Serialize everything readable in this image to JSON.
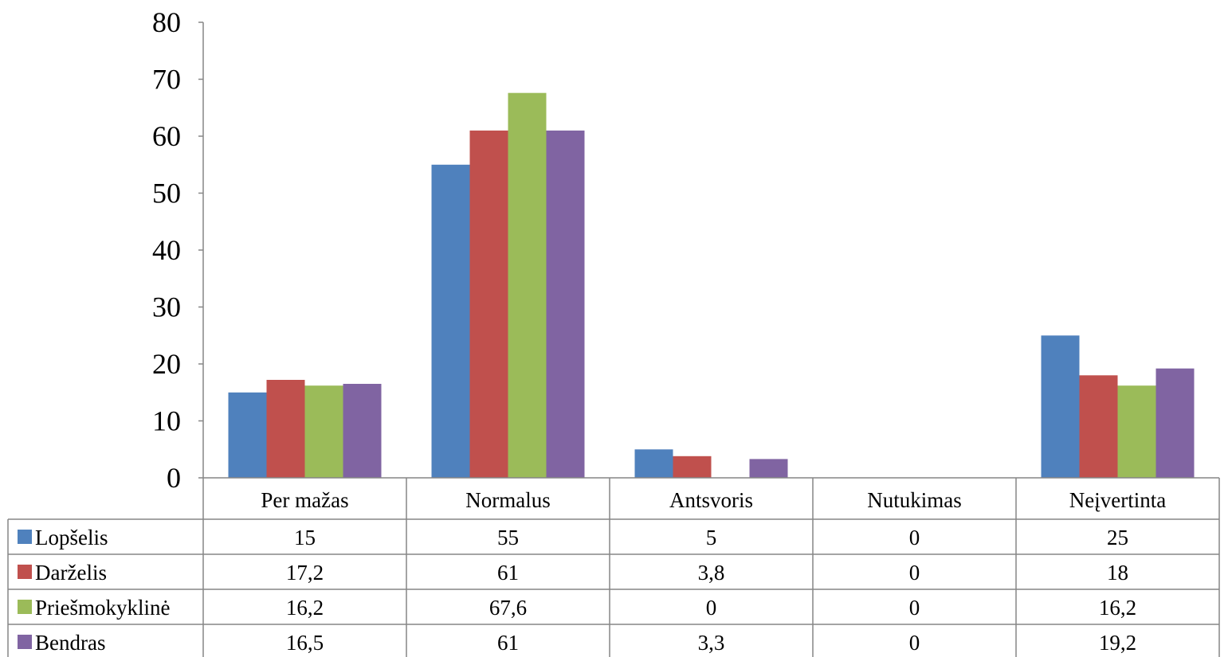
{
  "chart_data": {
    "type": "bar",
    "categories": [
      "Per mažas",
      "Normalus",
      "Antsvoris",
      "Nutukimas",
      "Neįvertinta"
    ],
    "series": [
      {
        "name": "Lopšelis",
        "color": "#4F81BD",
        "values": [
          15,
          55,
          5,
          0,
          25
        ],
        "labels": [
          "15",
          "55",
          "5",
          "0",
          "25"
        ]
      },
      {
        "name": "Darželis",
        "color": "#C0504D",
        "values": [
          17.2,
          61,
          3.8,
          0,
          18
        ],
        "labels": [
          "17,2",
          "61",
          "3,8",
          "0",
          "18"
        ]
      },
      {
        "name": "Priešmokyklinė",
        "color": "#9BBB59",
        "values": [
          16.2,
          67.6,
          0,
          0,
          16.2
        ],
        "labels": [
          "16,2",
          "67,6",
          "0",
          "0",
          "16,2"
        ]
      },
      {
        "name": "Bendras",
        "color": "#8064A2",
        "values": [
          16.5,
          61,
          3.3,
          0,
          19.2
        ],
        "labels": [
          "16,5",
          "61",
          "3,3",
          "0",
          "19,2"
        ]
      }
    ],
    "ylim": [
      0,
      80
    ],
    "yticks": [
      0,
      10,
      20,
      30,
      40,
      50,
      60,
      70,
      80
    ],
    "grid": false,
    "legend": "data-table"
  }
}
